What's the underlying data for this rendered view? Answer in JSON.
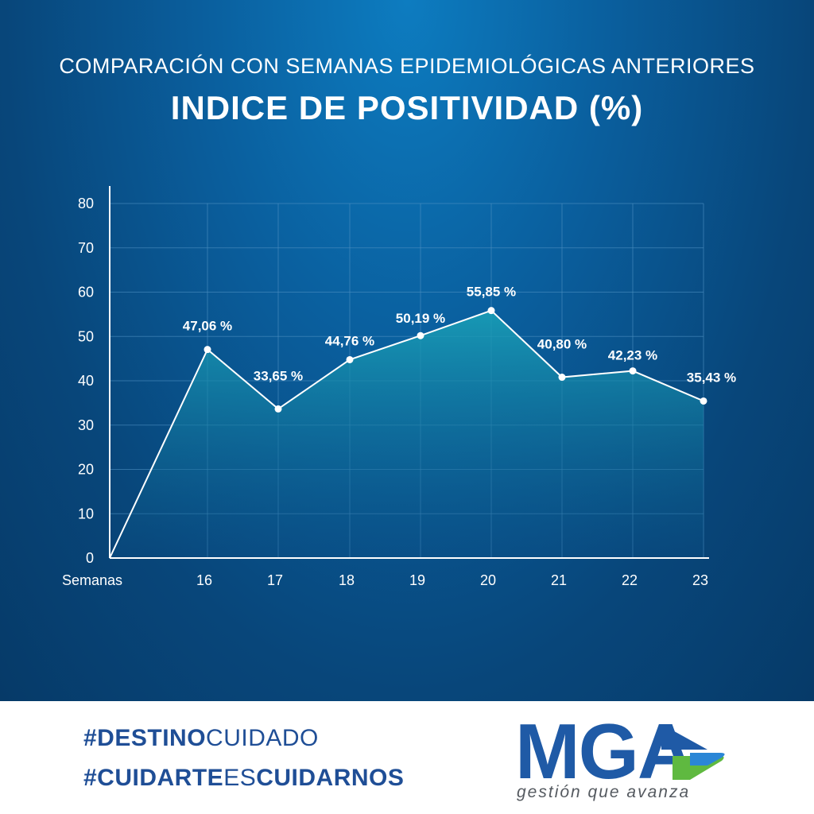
{
  "header": {
    "subtitle": "COMPARACIÓN CON SEMANAS EPIDEMIOLÓGICAS ANTERIORES",
    "title": "INDICE DE POSITIVIDAD (%)"
  },
  "chart_data": {
    "type": "area",
    "x_axis_label": "Semanas",
    "y_ticks": [
      0,
      10,
      20,
      30,
      40,
      50,
      60,
      70,
      80
    ],
    "ylim": [
      0,
      80
    ],
    "grid": true,
    "start_point": {
      "x": "0",
      "y": 0
    },
    "categories": [
      "16",
      "17",
      "18",
      "19",
      "20",
      "21",
      "22",
      "23"
    ],
    "values": [
      47.06,
      33.65,
      44.76,
      50.19,
      55.85,
      40.8,
      42.23,
      35.43
    ],
    "data_labels": [
      "47,06 %",
      "33,65 %",
      "44,76 %",
      "50,19 %",
      "55,85 %",
      "40,80 %",
      "42,23 %",
      "35,43 %"
    ],
    "colors": {
      "line": "#ffffff",
      "fill_top": "#1aa3b8",
      "fill_bottom": "#0a4f86",
      "grid": "#4d8fc2"
    }
  },
  "footer": {
    "hashtag1_bold": "#DESTINO",
    "hashtag1_light": "CUIDADO",
    "hashtag2_bold": "#CUIDARTE",
    "hashtag2_light": "ES",
    "hashtag2_bold_end": "CUIDARNOS",
    "logo_text": "MGA",
    "logo_tagline": "gestión que avanza",
    "colors": {
      "hashtag": "#1f4e96",
      "logo_blue": "#1f5aa6",
      "logo_green": "#5fb940"
    }
  }
}
